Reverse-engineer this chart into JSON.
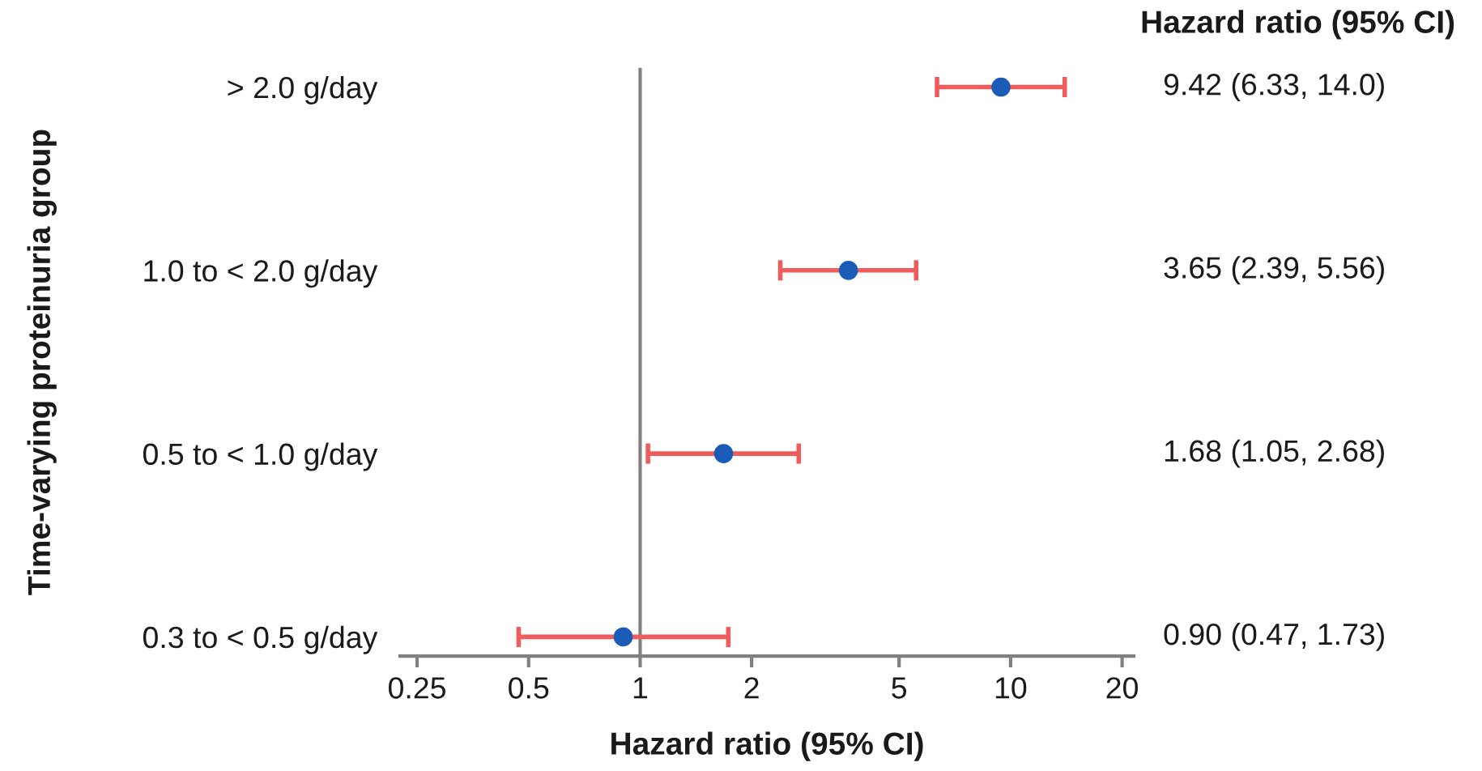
{
  "chart_data": {
    "type": "scatter",
    "orientation": "horizontal",
    "categories": [
      "> 2.0 g/day",
      "1.0 to < 2.0 g/day",
      "0.5 to < 1.0 g/day",
      "0.3 to < 0.5 g/day"
    ],
    "values": [
      9.42,
      3.65,
      1.68,
      0.9
    ],
    "errors": [
      [
        6.33,
        14.0
      ],
      [
        2.39,
        5.56
      ],
      [
        1.05,
        2.68
      ],
      [
        0.47,
        1.73
      ]
    ],
    "value_labels": [
      "9.42 (6.33, 14.0)",
      "3.65 (2.39, 5.56)",
      "1.68 (1.05, 2.68)",
      "0.90 (0.47, 1.73)"
    ],
    "color": "#1a5cb8",
    "marker": "circle",
    "xlabel": "Hazard ratio (95% CI)",
    "ylabel": "Time-varying proteinuria group",
    "annotations": [
      "Hazard ratio (95% CI)"
    ],
    "log": "x",
    "xlim": [
      0.225,
      21.5
    ],
    "xticks": [
      0.25,
      0.5,
      1,
      2,
      5,
      10,
      20
    ],
    "ref_lines": [
      {
        "axis": "x",
        "value": 1,
        "color": "#808080"
      }
    ],
    "grid": false
  }
}
